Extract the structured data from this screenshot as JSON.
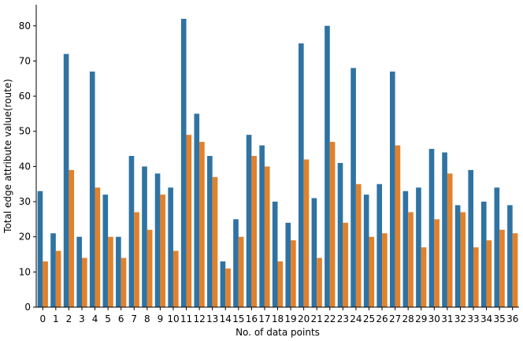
{
  "chart_data": {
    "type": "bar",
    "title": "",
    "xlabel": "No. of data points",
    "ylabel": "Total edge attribute value(route)",
    "ylim": [
      0,
      86
    ],
    "yticks": [
      0,
      10,
      20,
      30,
      40,
      50,
      60,
      70,
      80
    ],
    "grid": false,
    "legend": "none",
    "categories": [
      "0",
      "1",
      "2",
      "3",
      "4",
      "5",
      "6",
      "7",
      "8",
      "9",
      "10",
      "11",
      "12",
      "13",
      "14",
      "15",
      "16",
      "17",
      "18",
      "19",
      "20",
      "21",
      "22",
      "23",
      "24",
      "25",
      "26",
      "27",
      "28",
      "29",
      "30",
      "31",
      "32",
      "33",
      "34",
      "35",
      "36"
    ],
    "series": [
      {
        "color": "#2f73a3",
        "values": [
          33,
          21,
          72,
          20,
          67,
          32,
          20,
          43,
          40,
          38,
          34,
          82,
          55,
          43,
          13,
          25,
          49,
          46,
          30,
          24,
          75,
          31,
          80,
          41,
          68,
          32,
          35,
          67,
          33,
          34,
          45,
          44,
          29,
          39,
          30,
          34,
          29
        ]
      },
      {
        "color": "#e1812c",
        "values": [
          13,
          16,
          39,
          14,
          34,
          20,
          14,
          27,
          22,
          32,
          16,
          49,
          47,
          37,
          11,
          20,
          43,
          40,
          13,
          19,
          42,
          14,
          47,
          24,
          35,
          20,
          21,
          46,
          27,
          17,
          25,
          38,
          27,
          17,
          19,
          22,
          21
        ]
      }
    ]
  }
}
